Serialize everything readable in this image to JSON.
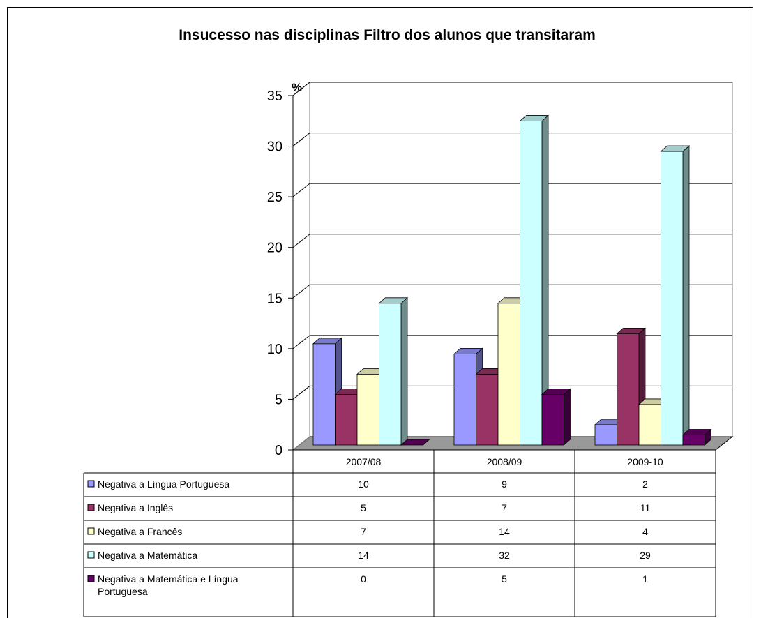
{
  "chart_data": {
    "type": "bar3d",
    "title": "Insucesso nas disciplinas Filtro dos alunos que transitaram",
    "y_label": "%",
    "categories": [
      "2007/08",
      "2008/09",
      "2009-10"
    ],
    "series": [
      {
        "name": "Negativa a Língua Portuguesa",
        "color": "#9999ff",
        "values": [
          10,
          9,
          2
        ]
      },
      {
        "name": "Negativa a Inglês",
        "color": "#993366",
        "values": [
          5,
          7,
          11
        ]
      },
      {
        "name": "Negativa a Francês",
        "color": "#ffffcc",
        "values": [
          7,
          14,
          4
        ]
      },
      {
        "name": "Negativa a Matemática",
        "color": "#ccffff",
        "values": [
          14,
          32,
          29
        ]
      },
      {
        "name": "Negativa a Matemática e Língua Portuguesa",
        "color": "#660066",
        "values": [
          0,
          5,
          1
        ]
      }
    ],
    "ylim": [
      0,
      35
    ],
    "yticks": [
      0,
      5,
      10,
      15,
      20,
      25,
      30,
      35
    ],
    "grid": true
  }
}
